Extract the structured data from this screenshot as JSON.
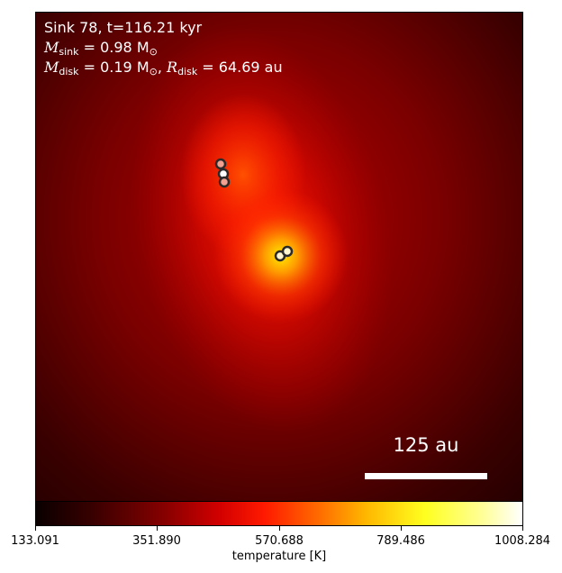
{
  "annotation": {
    "line1": "Sink 78, t=116.21 kyr",
    "sink_mass_symbol": "M",
    "sink_mass_sub": "sink",
    "sink_mass_value": " = 0.98 M",
    "sink_mass_unit_sub": "⊙",
    "disk_mass_symbol": "M",
    "disk_mass_sub": "disk",
    "disk_mass_value": " = 0.19 M",
    "disk_mass_unit_sub": "⊙",
    "disk_radius_sep": ", ",
    "disk_radius_symbol": "R",
    "disk_radius_sub": "disk",
    "disk_radius_value": " = 64.69 au"
  },
  "scale_bar": {
    "label": "125 au"
  },
  "colorbar": {
    "label": "temperature [K]",
    "ticks": [
      "133.091",
      "351.890",
      "570.688",
      "789.486",
      "1008.284"
    ],
    "colors": [
      "#0a0000",
      "#8a0000",
      "#ff1a00",
      "#ffb800",
      "#ffff20",
      "#ffffff"
    ]
  }
}
